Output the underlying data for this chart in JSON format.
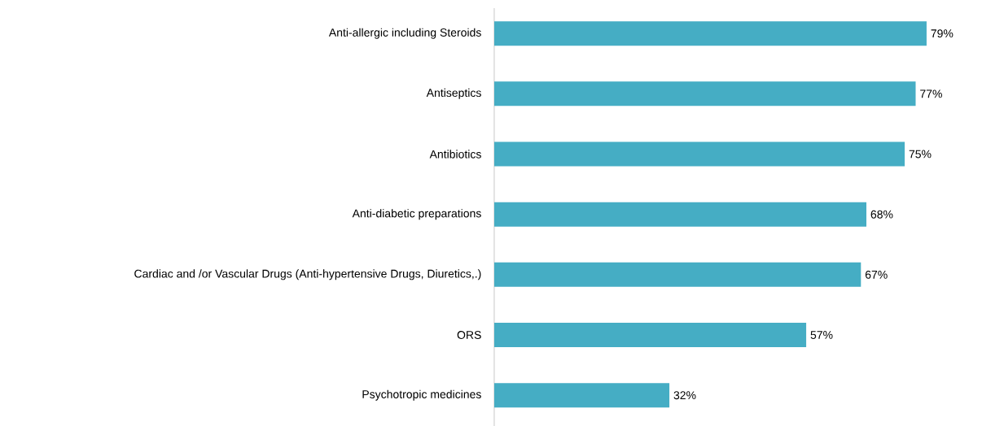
{
  "chart_data": {
    "type": "bar",
    "orientation": "horizontal",
    "categories": [
      "Anti-allergic including Steroids",
      "Antiseptics",
      "Antibiotics",
      "Anti-diabetic preparations",
      "Cardiac and /or Vascular Drugs (Anti-hypertensive Drugs, Diuretics,.)",
      "ORS",
      "Psychotropic medicines"
    ],
    "values": [
      79,
      77,
      75,
      68,
      67,
      57,
      32
    ],
    "value_labels": [
      "79%",
      "77%",
      "75%",
      "68%",
      "67%",
      "57%",
      "32%"
    ],
    "color": "#45adc4"
  }
}
